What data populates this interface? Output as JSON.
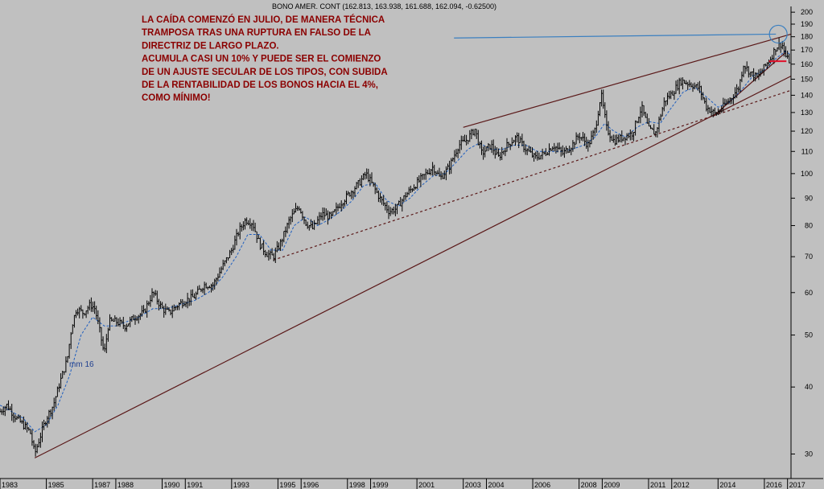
{
  "chart_data": {
    "type": "line",
    "header": "BONO AMER. CONT (162.813, 163.938, 161.688, 162.094, -0.62500)",
    "annotation_lines": [
      "LA CAÍDA COMENZÓ EN JULIO, DE MANERA TÉCNICA",
      "TRAMPOSA TRAS UNA RUPTURA  EN FALSO DE LA",
      "DIRECTRIZ  DE LARGO PLAZO.",
      "ACUMULA CASI UN  10%  Y PUEDE SER EL COMIENZO",
      "DE UN AJUSTE SECULAR  DE LOS TIPOS, CON SUBIDA",
      "DE LA RENTABILIDAD DE LOS BONOS  HACIA EL 4%,",
      "COMO MÍNIMO!"
    ],
    "ma_label": "mm 16",
    "y_scale": "log",
    "ylim": [
      27,
      205
    ],
    "xlim": [
      1983.0,
      2017.15
    ],
    "y_ticks": [
      30,
      40,
      50,
      60,
      70,
      80,
      90,
      100,
      110,
      120,
      130,
      140,
      150,
      160,
      170,
      180,
      190,
      200
    ],
    "x_ticks": [
      "1983",
      "1985",
      "1987",
      "1988",
      "1990",
      "1991",
      "1993",
      "1995",
      "1996",
      "1998",
      "1999",
      "2001",
      "2003",
      "2004",
      "2006",
      "2008",
      "2009",
      "2011",
      "2012",
      "2014",
      "2016",
      "2017"
    ],
    "grid": false,
    "colors": {
      "background": "#c0c0c0",
      "price": "#000000",
      "moving_average": "#1f5fbf",
      "trendlines": "#5a1818",
      "annotation": "#8b0000",
      "resistance_line": "#3a7fc0",
      "support_mark": "#e0102a"
    },
    "price_points": [
      [
        1983.0,
        36
      ],
      [
        1983.3,
        37
      ],
      [
        1983.7,
        35
      ],
      [
        1984.0,
        34
      ],
      [
        1984.3,
        33
      ],
      [
        1984.5,
        30
      ],
      [
        1984.8,
        33
      ],
      [
        1985.0,
        35
      ],
      [
        1985.3,
        37
      ],
      [
        1985.6,
        41
      ],
      [
        1985.9,
        45
      ],
      [
        1986.1,
        52
      ],
      [
        1986.3,
        56
      ],
      [
        1986.6,
        55
      ],
      [
        1986.9,
        57
      ],
      [
        1987.1,
        56
      ],
      [
        1987.3,
        51
      ],
      [
        1987.5,
        46
      ],
      [
        1987.7,
        53
      ],
      [
        1988.0,
        53
      ],
      [
        1988.4,
        52
      ],
      [
        1988.8,
        54
      ],
      [
        1989.2,
        55
      ],
      [
        1989.6,
        60
      ],
      [
        1990.0,
        56
      ],
      [
        1990.3,
        55
      ],
      [
        1990.7,
        57
      ],
      [
        1991.0,
        58
      ],
      [
        1991.4,
        59
      ],
      [
        1991.8,
        62
      ],
      [
        1992.2,
        62
      ],
      [
        1992.6,
        67
      ],
      [
        1993.0,
        72
      ],
      [
        1993.3,
        78
      ],
      [
        1993.6,
        82
      ],
      [
        1993.9,
        81
      ],
      [
        1994.2,
        74
      ],
      [
        1994.5,
        71
      ],
      [
        1994.8,
        70
      ],
      [
        1995.1,
        74
      ],
      [
        1995.5,
        82
      ],
      [
        1995.9,
        87
      ],
      [
        1996.2,
        81
      ],
      [
        1996.5,
        79
      ],
      [
        1996.9,
        84
      ],
      [
        1997.3,
        83
      ],
      [
        1997.7,
        88
      ],
      [
        1998.1,
        92
      ],
      [
        1998.5,
        96
      ],
      [
        1998.8,
        100
      ],
      [
        1999.1,
        95
      ],
      [
        1999.4,
        90
      ],
      [
        1999.8,
        85
      ],
      [
        2000.1,
        86
      ],
      [
        2000.5,
        91
      ],
      [
        2000.9,
        95
      ],
      [
        2001.3,
        99
      ],
      [
        2001.7,
        103
      ],
      [
        2002.0,
        98
      ],
      [
        2002.4,
        103
      ],
      [
        2002.8,
        113
      ],
      [
        2003.1,
        115
      ],
      [
        2003.5,
        121
      ],
      [
        2003.8,
        109
      ],
      [
        2004.2,
        113
      ],
      [
        2004.5,
        107
      ],
      [
        2004.9,
        113
      ],
      [
        2005.3,
        117
      ],
      [
        2005.7,
        111
      ],
      [
        2006.1,
        107
      ],
      [
        2006.5,
        109
      ],
      [
        2006.9,
        113
      ],
      [
        2007.3,
        109
      ],
      [
        2007.7,
        113
      ],
      [
        2008.0,
        118
      ],
      [
        2008.4,
        113
      ],
      [
        2008.7,
        121
      ],
      [
        2008.95,
        141
      ],
      [
        2009.2,
        121
      ],
      [
        2009.5,
        115
      ],
      [
        2009.9,
        117
      ],
      [
        2010.3,
        119
      ],
      [
        2010.7,
        133
      ],
      [
        2011.0,
        121
      ],
      [
        2011.3,
        119
      ],
      [
        2011.7,
        137
      ],
      [
        2012.0,
        141
      ],
      [
        2012.4,
        149
      ],
      [
        2012.8,
        147
      ],
      [
        2013.2,
        144
      ],
      [
        2013.5,
        133
      ],
      [
        2013.9,
        129
      ],
      [
        2014.2,
        133
      ],
      [
        2014.6,
        139
      ],
      [
        2014.9,
        145
      ],
      [
        2015.1,
        160
      ],
      [
        2015.4,
        154
      ],
      [
        2015.7,
        151
      ],
      [
        2016.0,
        158
      ],
      [
        2016.3,
        165
      ],
      [
        2016.5,
        172
      ],
      [
        2016.75,
        175
      ],
      [
        2016.95,
        164
      ],
      [
        2017.1,
        162
      ]
    ],
    "ma_points": [
      [
        1983.0,
        37
      ],
      [
        1983.5,
        36
      ],
      [
        1984.0,
        35
      ],
      [
        1984.5,
        33
      ],
      [
        1985.0,
        34
      ],
      [
        1985.5,
        37
      ],
      [
        1986.0,
        42
      ],
      [
        1986.5,
        50
      ],
      [
        1987.0,
        54
      ],
      [
        1987.5,
        52
      ],
      [
        1988.0,
        52
      ],
      [
        1988.5,
        53
      ],
      [
        1989.0,
        54
      ],
      [
        1989.6,
        56
      ],
      [
        1990.2,
        56
      ],
      [
        1990.8,
        57
      ],
      [
        1991.4,
        58
      ],
      [
        1992.0,
        60
      ],
      [
        1992.6,
        64
      ],
      [
        1993.2,
        70
      ],
      [
        1993.7,
        77
      ],
      [
        1994.2,
        77
      ],
      [
        1994.7,
        72
      ],
      [
        1995.2,
        72
      ],
      [
        1995.7,
        80
      ],
      [
        1996.2,
        83
      ],
      [
        1996.7,
        80
      ],
      [
        1997.2,
        82
      ],
      [
        1997.7,
        85
      ],
      [
        1998.2,
        89
      ],
      [
        1998.7,
        95
      ],
      [
        1999.2,
        96
      ],
      [
        1999.7,
        89
      ],
      [
        2000.2,
        87
      ],
      [
        2000.7,
        90
      ],
      [
        2001.2,
        95
      ],
      [
        2001.7,
        99
      ],
      [
        2002.2,
        100
      ],
      [
        2002.7,
        105
      ],
      [
        2003.2,
        111
      ],
      [
        2003.7,
        114
      ],
      [
        2004.2,
        111
      ],
      [
        2004.7,
        111
      ],
      [
        2005.2,
        113
      ],
      [
        2005.7,
        113
      ],
      [
        2006.2,
        110
      ],
      [
        2006.7,
        110
      ],
      [
        2007.2,
        110
      ],
      [
        2007.7,
        111
      ],
      [
        2008.2,
        113
      ],
      [
        2008.7,
        117
      ],
      [
        2009.1,
        124
      ],
      [
        2009.5,
        120
      ],
      [
        2010.0,
        117
      ],
      [
        2010.5,
        122
      ],
      [
        2011.0,
        125
      ],
      [
        2011.5,
        124
      ],
      [
        2012.0,
        133
      ],
      [
        2012.5,
        142
      ],
      [
        2013.0,
        145
      ],
      [
        2013.5,
        139
      ],
      [
        2014.0,
        133
      ],
      [
        2014.5,
        136
      ],
      [
        2015.0,
        143
      ],
      [
        2015.5,
        152
      ],
      [
        2016.0,
        156
      ],
      [
        2016.5,
        164
      ],
      [
        2016.9,
        169
      ],
      [
        2017.1,
        167
      ]
    ],
    "trendlines": [
      {
        "style": "solid",
        "from": [
          1984.5,
          29.5
        ],
        "to": [
          2017.15,
          152
        ]
      },
      {
        "style": "dashed",
        "from": [
          1994.8,
          69
        ],
        "to": [
          2017.15,
          143
        ]
      },
      {
        "style": "solid",
        "from": [
          2003.0,
          122
        ],
        "to": [
          2017.15,
          182
        ]
      },
      {
        "style": "solid",
        "from": [
          2013.8,
          128
        ],
        "to": [
          2016.9,
          168
        ]
      }
    ],
    "resistance_line": {
      "from": [
        2002.6,
        179
      ],
      "to": [
        2016.5,
        182
      ]
    },
    "support_mark": {
      "from": [
        2016.2,
        162
      ],
      "to": [
        2016.95,
        162
      ]
    },
    "highlight_circle": {
      "x": 2016.6,
      "y": 182
    }
  }
}
